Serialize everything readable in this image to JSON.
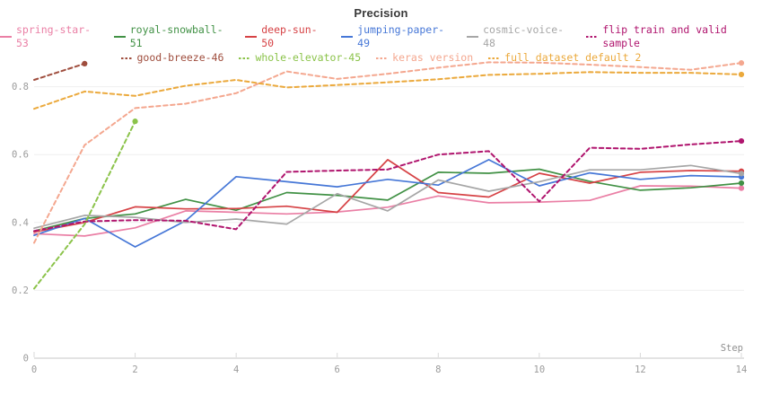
{
  "chart_data": {
    "type": "line",
    "title": "Precision",
    "xlabel": "Step",
    "x_ticks": [
      0,
      2,
      4,
      6,
      8,
      10,
      12,
      14
    ],
    "y_ticks": [
      0,
      0.2,
      0.4,
      0.6,
      0.8
    ],
    "y_tick_labels": [
      "0",
      "0.2",
      "0.4",
      "0.6",
      "0.8"
    ],
    "xlim": [
      0,
      14
    ],
    "ylim": [
      0,
      0.9
    ],
    "grid": "horizontal",
    "legend_position": "top",
    "axis_color": "#e3e3e3",
    "grid_color": "#efefef",
    "tick_color": "#d9d9d9",
    "series": [
      {
        "name": "spring-star-53",
        "color": "#ea7fa5",
        "dashed": false,
        "legend_row": 0,
        "values": [
          0.367,
          0.36,
          0.384,
          0.434,
          0.43,
          0.425,
          0.431,
          0.445,
          0.478,
          0.458,
          0.46,
          0.465,
          0.508,
          0.507,
          0.501
        ]
      },
      {
        "name": "royal-snowball-51",
        "color": "#419145",
        "dashed": false,
        "legend_row": 0,
        "values": [
          0.375,
          0.412,
          0.425,
          0.468,
          0.436,
          0.488,
          0.48,
          0.466,
          0.548,
          0.545,
          0.557,
          0.521,
          0.495,
          0.502,
          0.516
        ]
      },
      {
        "name": "deep-sun-50",
        "color": "#d64245",
        "dashed": false,
        "legend_row": 0,
        "values": [
          0.372,
          0.4,
          0.446,
          0.44,
          0.441,
          0.448,
          0.43,
          0.585,
          0.488,
          0.475,
          0.545,
          0.516,
          0.548,
          0.553,
          0.551
        ]
      },
      {
        "name": "jumping-paper-49",
        "color": "#4677d7",
        "dashed": false,
        "legend_row": 0,
        "values": [
          0.362,
          0.412,
          0.328,
          0.405,
          0.535,
          0.52,
          0.505,
          0.527,
          0.51,
          0.585,
          0.508,
          0.546,
          0.527,
          0.538,
          0.534
        ]
      },
      {
        "name": "cosmic-voice-48",
        "color": "#a6a6a6",
        "dashed": false,
        "legend_row": 0,
        "values": [
          0.383,
          0.421,
          0.415,
          0.4,
          0.41,
          0.395,
          0.485,
          0.434,
          0.525,
          0.492,
          0.52,
          0.555,
          0.555,
          0.568,
          0.544
        ]
      },
      {
        "name": "flip train and valid sample",
        "color": "#b0156e",
        "dashed": true,
        "legend_row": 0,
        "values": [
          0.375,
          0.403,
          0.407,
          0.405,
          0.38,
          0.549,
          0.553,
          0.556,
          0.6,
          0.61,
          0.462,
          0.62,
          0.617,
          0.63,
          0.64
        ]
      },
      {
        "name": "good-breeze-46",
        "color": "#9f4d3d",
        "dashed": true,
        "legend_row": 1,
        "values": [
          0.82,
          0.868
        ]
      },
      {
        "name": "whole-elevator-45",
        "color": "#8bc34a",
        "dashed": true,
        "legend_row": 1,
        "values": [
          0.205,
          0.395,
          0.698
        ]
      },
      {
        "name": "keras version",
        "color": "#f4a78f",
        "dashed": true,
        "legend_row": 1,
        "values": [
          0.34,
          0.628,
          0.737,
          0.75,
          0.781,
          0.845,
          0.823,
          0.838,
          0.856,
          0.872,
          0.871,
          0.865,
          0.858,
          0.85,
          0.87
        ]
      },
      {
        "name": "full dataset default 2",
        "color": "#eba93c",
        "dashed": true,
        "legend_row": 1,
        "values": [
          0.735,
          0.786,
          0.773,
          0.803,
          0.82,
          0.798,
          0.805,
          0.813,
          0.822,
          0.835,
          0.838,
          0.843,
          0.841,
          0.841,
          0.836
        ]
      }
    ]
  }
}
